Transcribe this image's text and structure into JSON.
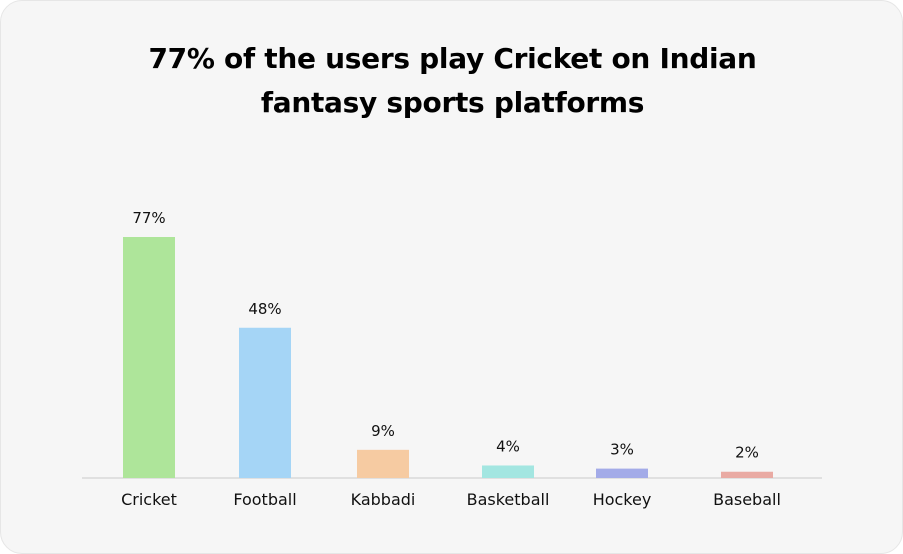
{
  "title": {
    "line1": "77% of the users play Cricket on Indian",
    "line2": "fantasy sports platforms"
  },
  "chart_data": {
    "type": "bar",
    "title": "77% of the users play Cricket on Indian fantasy sports platforms",
    "categories": [
      "Cricket",
      "Football",
      "Kabbadi",
      "Basketball",
      "Hockey",
      "Baseball"
    ],
    "values": [
      77,
      48,
      9,
      4,
      3,
      2
    ],
    "value_labels": [
      "77%",
      "48%",
      "9%",
      "4%",
      "3%",
      "2%"
    ],
    "colors": [
      "#aee59a",
      "#a5d5f6",
      "#f6cba2",
      "#a3e6e1",
      "#a3abe8",
      "#e9aaa3"
    ],
    "ylim": [
      0,
      77
    ],
    "grid": false,
    "legend": "none"
  }
}
